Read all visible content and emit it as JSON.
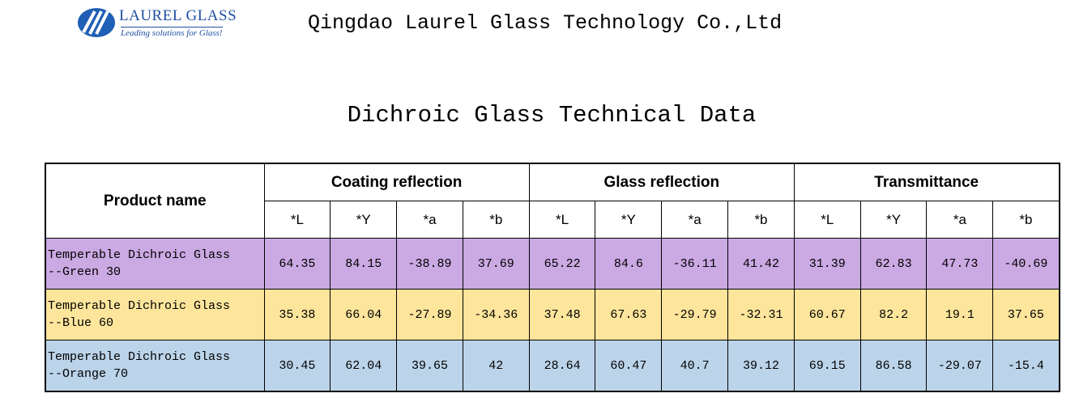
{
  "header": {
    "logo": {
      "name": "LAUREL GLASS",
      "tagline": "Leading solutions for Glass!"
    },
    "company": "Qingdao Laurel Glass Technology Co.,Ltd"
  },
  "title": "Dichroic Glass Technical Data",
  "table": {
    "product_header": "Product name",
    "groups": [
      {
        "name": "Coating reflection",
        "columns": [
          "*L",
          "*Y",
          "*a",
          "*b"
        ]
      },
      {
        "name": "Glass reflection",
        "columns": [
          "*L",
          "*Y",
          "*a",
          "*b"
        ]
      },
      {
        "name": "Transmittance",
        "columns": [
          "*L",
          "*Y",
          "*a",
          "*b"
        ]
      }
    ],
    "rows": [
      {
        "product": [
          "Temperable Dichroic Glass",
          "--Green 30"
        ],
        "color": "#cba9e3",
        "values": [
          64.35,
          84.15,
          -38.89,
          37.69,
          65.22,
          84.6,
          -36.11,
          41.42,
          31.39,
          62.83,
          47.73,
          -40.69
        ]
      },
      {
        "product": [
          "Temperable Dichroic Glass",
          "--Blue 60"
        ],
        "color": "#fde59c",
        "values": [
          35.38,
          66.04,
          -27.89,
          -34.36,
          37.48,
          67.63,
          -29.79,
          -32.31,
          60.67,
          82.2,
          19.1,
          37.65
        ]
      },
      {
        "product": [
          "Temperable Dichroic Glass",
          "--Orange 70"
        ],
        "color": "#bcd4ea",
        "values": [
          30.45,
          62.04,
          39.65,
          42,
          28.64,
          60.47,
          40.7,
          39.12,
          69.15,
          86.58,
          -29.07,
          -15.4
        ]
      }
    ]
  }
}
